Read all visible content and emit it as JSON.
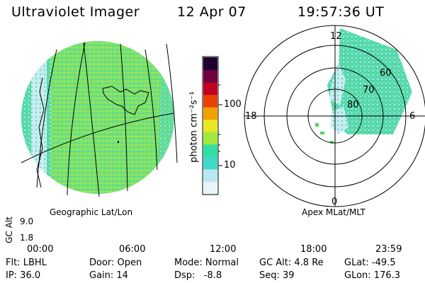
{
  "header": {
    "title": "Ultraviolet Imager",
    "date": "12 Apr 07",
    "time": "19:57:36 UT"
  },
  "colorbar": {
    "label": "photon cm⁻²s⁻¹",
    "ticks": [
      "100",
      "10"
    ],
    "colors": [
      "#e8f4f8",
      "#b8e8f0",
      "#40d8c8",
      "#30e0a0",
      "#a0e840",
      "#e8e820",
      "#f0a000",
      "#e84000",
      "#c00020",
      "#700040",
      "#200030"
    ]
  },
  "polar": {
    "mlt_labels": {
      "top": "12",
      "left": "18",
      "right": "6",
      "bottom": "0"
    },
    "lat_labels": [
      "60",
      "70",
      "80"
    ]
  },
  "captions": {
    "left": "Geographic Lat/Lon",
    "right": "Apex MLat/MLT"
  },
  "timeline": {
    "axis_title": "GC Alt",
    "y_top": "9.0",
    "y_bottom": "1.8",
    "ticks": [
      "00:00",
      "06:00",
      "12:00",
      "18:00",
      "23:59"
    ],
    "current_fraction": 0.831,
    "marker_color": "#e00000"
  },
  "status": {
    "flt": "Flt: LBHL",
    "ip": "IP: 36.0",
    "door": "Door: Open",
    "gain": "Gain: 14",
    "mode": "Mode: Normal",
    "dsp": "Dsp:   -8.8",
    "gcalt": "GC Alt: 4.8 Re",
    "seq": "Seq: 39",
    "glat": "GLat: -49.5",
    "glon": "GLon: 176.3"
  }
}
